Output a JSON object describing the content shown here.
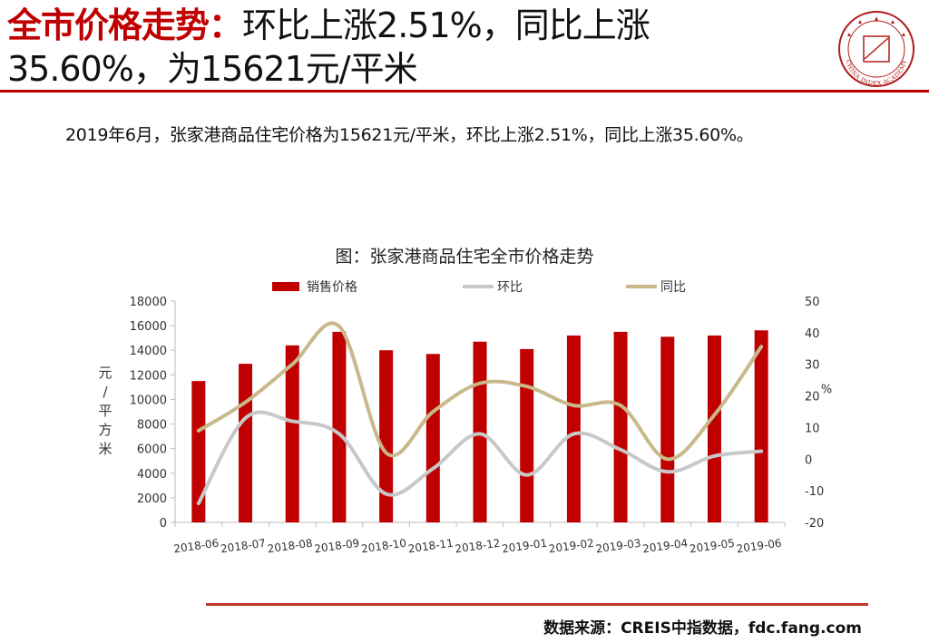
{
  "headline": {
    "red_part": "全市价格走势：",
    "rest": "环比上涨2.51%，同比上涨35.60%，为15621元/平米"
  },
  "logo": {
    "text": "CHINA INDEX ACADEMY"
  },
  "summary": "2019年6月，张家港商品住宅价格为15621元/平米，环比上涨2.51%，同比上涨35.60%。",
  "source": "数据来源：CREIS中指数据，fdc.fang.com",
  "colors": {
    "accent_red": "#c00000",
    "bar": "#c00000",
    "mom_line": "#c8c8c8",
    "yoy_line": "#c8b88a"
  },
  "chart_data": {
    "type": "bar",
    "title": "图：张家港商品住宅全市价格走势",
    "categories": [
      "2018-06",
      "2018-07",
      "2018-08",
      "2018-09",
      "2018-10",
      "2018-11",
      "2018-12",
      "2019-01",
      "2019-02",
      "2019-03",
      "2019-04",
      "2019-05",
      "2019-06"
    ],
    "y_left_label": "元/平方米",
    "y_right_label": "%",
    "y_left_lim": [
      0,
      18000
    ],
    "y_left_ticks": [
      "0",
      "2000",
      "4000",
      "6000",
      "8000",
      "10000",
      "12000",
      "14000",
      "16000",
      "18000"
    ],
    "y_right_lim": [
      -20,
      50
    ],
    "y_right_ticks": [
      "-20",
      "-10",
      "0",
      "10",
      "20",
      "30",
      "40",
      "50"
    ],
    "legend_position": "top",
    "grid": false,
    "series": [
      {
        "name": "销售价格",
        "type": "bar",
        "axis": "left",
        "color": "#c00000",
        "values": [
          11500,
          12900,
          14400,
          15500,
          14000,
          13700,
          14700,
          14100,
          15200,
          15500,
          15100,
          15200,
          15621
        ]
      },
      {
        "name": "环比",
        "type": "line",
        "axis": "right",
        "color": "#c8c8c8",
        "values": [
          -14,
          13,
          12,
          8,
          -11,
          -3,
          8,
          -5,
          8,
          3,
          -4,
          1,
          2.51
        ]
      },
      {
        "name": "同比",
        "type": "line",
        "axis": "right",
        "color": "#c8b88a",
        "values": [
          9,
          18,
          30,
          42,
          2,
          15,
          24,
          23,
          17,
          17,
          0,
          14,
          35.6
        ]
      }
    ]
  }
}
